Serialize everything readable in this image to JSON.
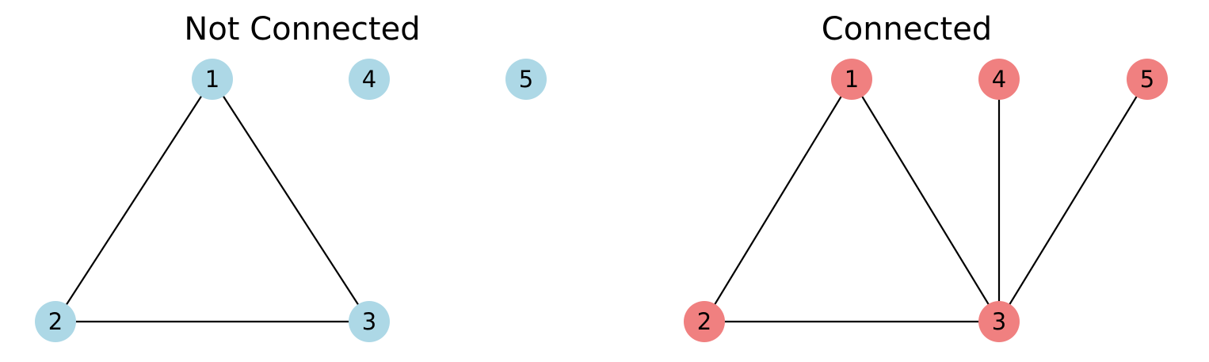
{
  "graphs": [
    {
      "title": "Not Connected",
      "node_color": "#add8e6",
      "nodes": [
        "1",
        "2",
        "3",
        "4",
        "5"
      ],
      "edges": [
        [
          "1",
          "2"
        ],
        [
          "1",
          "3"
        ],
        [
          "2",
          "3"
        ]
      ]
    },
    {
      "title": "Connected",
      "node_color": "#f08080",
      "nodes": [
        "1",
        "2",
        "3",
        "4",
        "5"
      ],
      "edges": [
        [
          "1",
          "2"
        ],
        [
          "1",
          "3"
        ],
        [
          "2",
          "3"
        ],
        [
          "3",
          "4"
        ],
        [
          "3",
          "5"
        ]
      ]
    }
  ],
  "edge_color": "#000000"
}
